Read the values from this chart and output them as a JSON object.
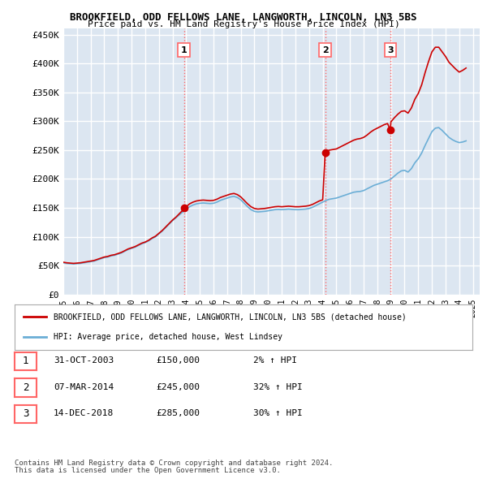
{
  "title": "BROOKFIELD, ODD FELLOWS LANE, LANGWORTH, LINCOLN, LN3 5BS",
  "subtitle": "Price paid vs. HM Land Registry's House Price Index (HPI)",
  "background_color": "#ffffff",
  "plot_bg_color": "#dce6f1",
  "grid_color": "#ffffff",
  "ylim": [
    0,
    460000
  ],
  "yticks": [
    0,
    50000,
    100000,
    150000,
    200000,
    250000,
    300000,
    350000,
    400000,
    450000
  ],
  "ytick_labels": [
    "£0",
    "£50K",
    "£100K",
    "£150K",
    "£200K",
    "£250K",
    "£300K",
    "£350K",
    "£400K",
    "£450K"
  ],
  "xlim_start": 1995.0,
  "xlim_end": 2025.5,
  "xtick_years": [
    1995,
    1996,
    1997,
    1998,
    1999,
    2000,
    2001,
    2002,
    2003,
    2004,
    2005,
    2006,
    2007,
    2008,
    2009,
    2010,
    2011,
    2012,
    2013,
    2014,
    2015,
    2016,
    2017,
    2018,
    2019,
    2020,
    2021,
    2022,
    2023,
    2024,
    2025
  ],
  "sale_dates": [
    2003.83,
    2014.18,
    2018.95
  ],
  "sale_prices": [
    150000,
    245000,
    285000
  ],
  "sale_labels": [
    "1",
    "2",
    "3"
  ],
  "vline_color": "#ff6666",
  "vline_style": ":",
  "hpi_line_color": "#6baed6",
  "price_line_color": "#cc0000",
  "marker_color": "#cc0000",
  "legend_label_price": "BROOKFIELD, ODD FELLOWS LANE, LANGWORTH, LINCOLN, LN3 5BS (detached house)",
  "legend_label_hpi": "HPI: Average price, detached house, West Lindsey",
  "table_rows": [
    {
      "num": "1",
      "date": "31-OCT-2003",
      "price": "£150,000",
      "change": "2% ↑ HPI"
    },
    {
      "num": "2",
      "date": "07-MAR-2014",
      "price": "£245,000",
      "change": "32% ↑ HPI"
    },
    {
      "num": "3",
      "date": "14-DEC-2018",
      "price": "£285,000",
      "change": "30% ↑ HPI"
    }
  ],
  "footer_line1": "Contains HM Land Registry data © Crown copyright and database right 2024.",
  "footer_line2": "This data is licensed under the Open Government Licence v3.0.",
  "hpi_data": {
    "years": [
      1995.0,
      1995.25,
      1995.5,
      1995.75,
      1996.0,
      1996.25,
      1996.5,
      1996.75,
      1997.0,
      1997.25,
      1997.5,
      1997.75,
      1998.0,
      1998.25,
      1998.5,
      1998.75,
      1999.0,
      1999.25,
      1999.5,
      1999.75,
      2000.0,
      2000.25,
      2000.5,
      2000.75,
      2001.0,
      2001.25,
      2001.5,
      2001.75,
      2002.0,
      2002.25,
      2002.5,
      2002.75,
      2003.0,
      2003.25,
      2003.5,
      2003.75,
      2004.0,
      2004.25,
      2004.5,
      2004.75,
      2005.0,
      2005.25,
      2005.5,
      2005.75,
      2006.0,
      2006.25,
      2006.5,
      2006.75,
      2007.0,
      2007.25,
      2007.5,
      2007.75,
      2008.0,
      2008.25,
      2008.5,
      2008.75,
      2009.0,
      2009.25,
      2009.5,
      2009.75,
      2010.0,
      2010.25,
      2010.5,
      2010.75,
      2011.0,
      2011.25,
      2011.5,
      2011.75,
      2012.0,
      2012.25,
      2012.5,
      2012.75,
      2013.0,
      2013.25,
      2013.5,
      2013.75,
      2014.0,
      2014.25,
      2014.5,
      2014.75,
      2015.0,
      2015.25,
      2015.5,
      2015.75,
      2016.0,
      2016.25,
      2016.5,
      2016.75,
      2017.0,
      2017.25,
      2017.5,
      2017.75,
      2018.0,
      2018.25,
      2018.5,
      2018.75,
      2019.0,
      2019.25,
      2019.5,
      2019.75,
      2020.0,
      2020.25,
      2020.5,
      2020.75,
      2021.0,
      2021.25,
      2021.5,
      2021.75,
      2022.0,
      2022.25,
      2022.5,
      2022.75,
      2023.0,
      2023.25,
      2023.5,
      2023.75,
      2024.0,
      2024.25,
      2024.5
    ],
    "values": [
      55000,
      54000,
      53500,
      53000,
      53500,
      54000,
      55000,
      56000,
      57000,
      58000,
      60000,
      62000,
      64000,
      65000,
      67000,
      68000,
      70000,
      72000,
      75000,
      78000,
      80000,
      82000,
      85000,
      88000,
      90000,
      93000,
      97000,
      100000,
      105000,
      110000,
      116000,
      122000,
      128000,
      133000,
      138000,
      143000,
      148000,
      152000,
      155000,
      157000,
      158000,
      158500,
      158000,
      157500,
      158000,
      160000,
      163000,
      165000,
      167000,
      169000,
      170000,
      168000,
      164000,
      158000,
      152000,
      147000,
      144000,
      143000,
      143500,
      144000,
      145000,
      146000,
      147000,
      147500,
      147000,
      147500,
      148000,
      147500,
      147000,
      147000,
      147500,
      148000,
      149000,
      151000,
      154000,
      157000,
      160000,
      163000,
      165000,
      166000,
      167000,
      169000,
      171000,
      173000,
      175000,
      177000,
      178000,
      178500,
      180000,
      183000,
      186000,
      189000,
      191000,
      193000,
      195000,
      197000,
      200000,
      205000,
      210000,
      214000,
      215000,
      212000,
      218000,
      228000,
      235000,
      245000,
      258000,
      270000,
      282000,
      288000,
      289000,
      284000,
      278000,
      272000,
      268000,
      265000,
      263000,
      264000,
      266000
    ]
  },
  "price_data": {
    "years": [
      1995.0,
      1995.25,
      1995.5,
      1995.75,
      1996.0,
      1996.25,
      1996.5,
      1996.75,
      1997.0,
      1997.25,
      1997.5,
      1997.75,
      1998.0,
      1998.25,
      1998.5,
      1998.75,
      1999.0,
      1999.25,
      1999.5,
      1999.75,
      2000.0,
      2000.25,
      2000.5,
      2000.75,
      2001.0,
      2001.25,
      2001.5,
      2001.75,
      2002.0,
      2002.25,
      2002.5,
      2002.75,
      2003.0,
      2003.25,
      2003.5,
      2003.75,
      2003.83,
      2004.0,
      2004.25,
      2004.5,
      2004.75,
      2005.0,
      2005.25,
      2005.5,
      2005.75,
      2006.0,
      2006.25,
      2006.5,
      2006.75,
      2007.0,
      2007.25,
      2007.5,
      2007.75,
      2008.0,
      2008.25,
      2008.5,
      2008.75,
      2009.0,
      2009.25,
      2009.5,
      2009.75,
      2010.0,
      2010.25,
      2010.5,
      2010.75,
      2011.0,
      2011.25,
      2011.5,
      2011.75,
      2012.0,
      2012.25,
      2012.5,
      2012.75,
      2013.0,
      2013.25,
      2013.5,
      2013.75,
      2014.0,
      2014.18,
      2014.25,
      2014.5,
      2014.75,
      2015.0,
      2015.25,
      2015.5,
      2015.75,
      2016.0,
      2016.25,
      2016.5,
      2016.75,
      2017.0,
      2017.25,
      2017.5,
      2017.75,
      2018.0,
      2018.25,
      2018.5,
      2018.75,
      2018.95,
      2019.0,
      2019.25,
      2019.5,
      2019.75,
      2020.0,
      2020.25,
      2020.5,
      2020.75,
      2021.0,
      2021.25,
      2021.5,
      2021.75,
      2022.0,
      2022.25,
      2022.5,
      2022.75,
      2023.0,
      2023.25,
      2023.5,
      2023.75,
      2024.0,
      2024.25,
      2024.5
    ],
    "values": [
      56000,
      55000,
      54500,
      54000,
      54500,
      55000,
      56000,
      57000,
      58000,
      59000,
      61000,
      63000,
      65000,
      66000,
      68000,
      69000,
      71000,
      73000,
      76000,
      79000,
      81000,
      83000,
      86000,
      89000,
      91000,
      94000,
      98000,
      101000,
      106000,
      111000,
      117000,
      123000,
      129000,
      134000,
      140000,
      146000,
      150000,
      152000,
      157000,
      160000,
      162000,
      163000,
      163500,
      163000,
      162500,
      163000,
      165000,
      168000,
      170000,
      172000,
      174000,
      175000,
      173000,
      169000,
      163000,
      157000,
      152000,
      149000,
      148000,
      148500,
      149000,
      150000,
      151000,
      152000,
      152500,
      152000,
      152500,
      153000,
      152500,
      152000,
      152000,
      152500,
      153000,
      154000,
      156000,
      159000,
      162000,
      164000,
      245000,
      248000,
      250000,
      251000,
      252000,
      255000,
      258000,
      261000,
      264000,
      267000,
      269000,
      270000,
      272000,
      276000,
      281000,
      285000,
      288000,
      291000,
      294000,
      296000,
      285000,
      299000,
      306000,
      312000,
      317000,
      318000,
      314000,
      323000,
      338000,
      348000,
      363000,
      384000,
      403000,
      420000,
      428000,
      428000,
      420000,
      412000,
      402000,
      396000,
      390000,
      385000,
      388000,
      392000
    ]
  }
}
